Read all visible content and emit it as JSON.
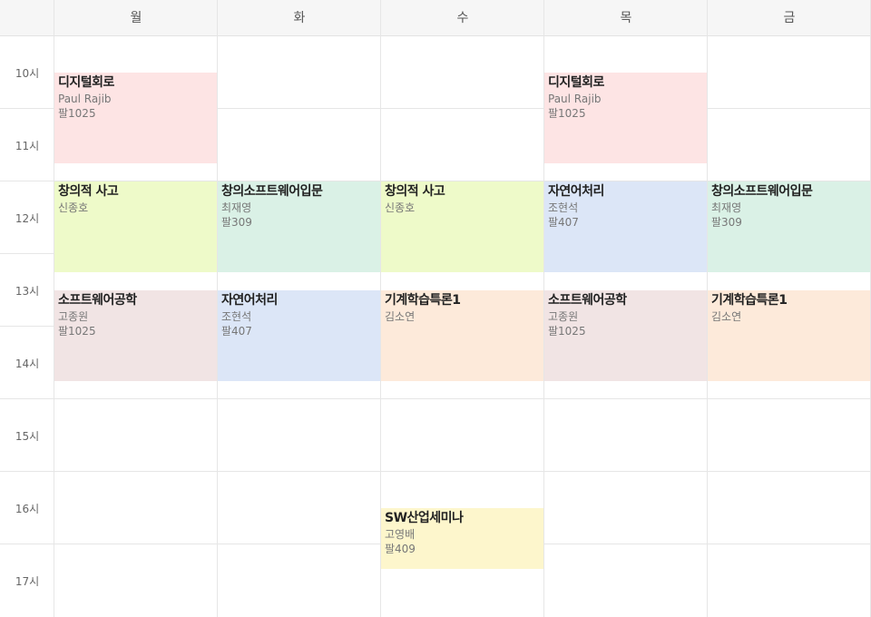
{
  "days": [
    "월",
    "화",
    "수",
    "목",
    "금"
  ],
  "times": [
    "10시",
    "11시",
    "12시",
    "13시",
    "14시",
    "15시",
    "16시",
    "17시"
  ],
  "courses": [
    {
      "id": "mon-digital",
      "day": 0,
      "start": 10.5,
      "end": 11.75,
      "name": "디지털회로",
      "professor": "Paul Rajib",
      "room": "팔1025",
      "color": "#fde4e4"
    },
    {
      "id": "thu-digital",
      "day": 3,
      "start": 10.5,
      "end": 11.75,
      "name": "디지털회로",
      "professor": "Paul Rajib",
      "room": "팔1025",
      "color": "#fde4e4"
    },
    {
      "id": "mon-creative",
      "day": 0,
      "start": 12,
      "end": 13.25,
      "name": "창의적 사고",
      "professor": "신종호",
      "room": "",
      "color": "#eefac9"
    },
    {
      "id": "wed-creative",
      "day": 2,
      "start": 12,
      "end": 13.25,
      "name": "창의적 사고",
      "professor": "신종호",
      "room": "",
      "color": "#eefac9"
    },
    {
      "id": "tue-intro-sw",
      "day": 1,
      "start": 12,
      "end": 13.25,
      "name": "창의소프트웨어입문",
      "professor": "최재영",
      "room": "팔309",
      "color": "#daf1e6"
    },
    {
      "id": "fri-intro-sw",
      "day": 4,
      "start": 12,
      "end": 13.25,
      "name": "창의소프트웨어입문",
      "professor": "최재영",
      "room": "팔309",
      "color": "#daf1e6"
    },
    {
      "id": "thu-nlp",
      "day": 3,
      "start": 12,
      "end": 13.25,
      "name": "자연어처리",
      "professor": "조현석",
      "room": "팔407",
      "color": "#dce6f7"
    },
    {
      "id": "tue-nlp",
      "day": 1,
      "start": 13.5,
      "end": 14.75,
      "name": "자연어처리",
      "professor": "조현석",
      "room": "팔407",
      "color": "#dce6f7"
    },
    {
      "id": "mon-se",
      "day": 0,
      "start": 13.5,
      "end": 14.75,
      "name": "소프트웨어공학",
      "professor": "고종원",
      "room": "팔1025",
      "color": "#f1e4e4"
    },
    {
      "id": "thu-se",
      "day": 3,
      "start": 13.5,
      "end": 14.75,
      "name": "소프트웨어공학",
      "professor": "고종원",
      "room": "팔1025",
      "color": "#f1e4e4"
    },
    {
      "id": "wed-ml",
      "day": 2,
      "start": 13.5,
      "end": 14.75,
      "name": "기계학습특론1",
      "professor": "김소연",
      "room": "",
      "color": "#fdeada"
    },
    {
      "id": "fri-ml",
      "day": 4,
      "start": 13.5,
      "end": 14.75,
      "name": "기계학습특론1",
      "professor": "김소연",
      "room": "",
      "color": "#fdeada"
    },
    {
      "id": "wed-seminar",
      "day": 2,
      "start": 16.5,
      "end": 17.3333,
      "name": "SW산업세미나",
      "professor": "고영배",
      "room": "팔409",
      "color": "#fdf6cc"
    }
  ]
}
